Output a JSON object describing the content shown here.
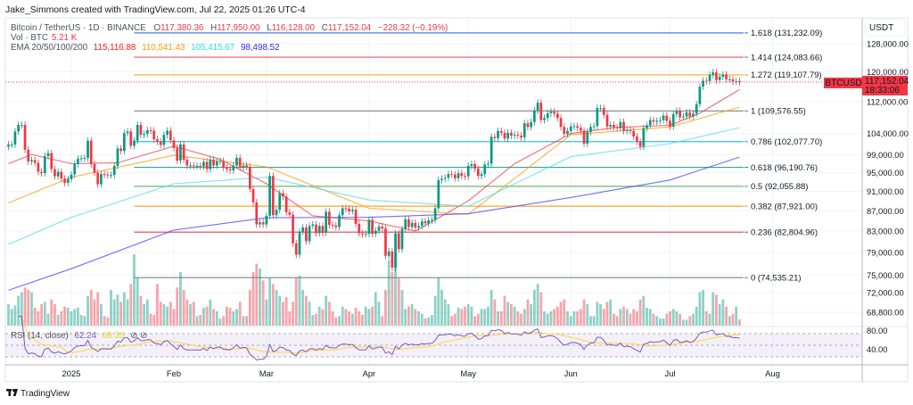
{
  "header": {
    "credit": "Jake_Simmons created with TradingView.com, Jul 22, 2025 01:26 UTC-4"
  },
  "legend": {
    "symbol": "Bitcoin / TetherUS · 1D · BINANCE",
    "open_label": "O",
    "open": "117,380.36",
    "high_label": "H",
    "high": "117,950.00",
    "low_label": "L",
    "low": "116,128.00",
    "close_label": "C",
    "close": "117,152.04",
    "change": "−228.32 (−0.19%)",
    "volume_label": "Vol · BTC",
    "volume": "5.21 K",
    "ema_label": "EMA 20/50/100/200",
    "ema20": "115,116.88",
    "ema50": "110,541.43",
    "ema100": "105,415.67",
    "ema200": "98,498.52"
  },
  "price_axis": {
    "currency": "USDT",
    "ticks": [
      "128,000.00",
      "120,000.00",
      "112,000.00",
      "104,000.00",
      "99,000.00",
      "95,000.00",
      "91,000.00",
      "87,000.00",
      "83,000.00",
      "79,000.00",
      "75,000.00",
      "72,000.00",
      "68,800.00"
    ],
    "tick_values": [
      128000,
      120000,
      112000,
      104000,
      99000,
      95000,
      91000,
      87000,
      83000,
      79000,
      75000,
      72000,
      68800
    ],
    "scale": "log",
    "current_symbol": "BTCUSDT",
    "current_price": "117,152.04",
    "countdown": "18:33:06"
  },
  "time_axis": {
    "ticks": [
      {
        "label": "2025",
        "date": "2025-01-01"
      },
      {
        "label": "Feb",
        "date": "2025-02-01"
      },
      {
        "label": "Mar",
        "date": "2025-03-01"
      },
      {
        "label": "Apr",
        "date": "2025-04-01"
      },
      {
        "label": "May",
        "date": "2025-05-01"
      },
      {
        "label": "Jun",
        "date": "2025-06-01"
      },
      {
        "label": "Jul",
        "date": "2025-07-01"
      },
      {
        "label": "Aug",
        "date": "2025-08-01"
      }
    ]
  },
  "rsi": {
    "label": "RSI (14, close)",
    "value": "62.24",
    "ma_value": "68.35",
    "ticks": [
      "80.00",
      "40.00"
    ],
    "levels": [
      70,
      50,
      30
    ]
  },
  "footer": {
    "brand": "TradingView"
  },
  "colors": {
    "up": "#089981",
    "down": "#f23645",
    "ema20": "#f23645",
    "ema50": "#ff9800",
    "ema100": "#4dd9ec",
    "ema200": "#3d3dff",
    "rsi": "#7e57c2",
    "rsi_ma": "#fdd835"
  },
  "chart_data": {
    "type": "candlestick",
    "symbol": "BTCUSDT",
    "interval": "1D",
    "first_date": "2024-12-13",
    "closes": [
      101400,
      101400,
      104500,
      106100,
      106100,
      100200,
      97500,
      97800,
      97200,
      95200,
      94900,
      98700,
      99400,
      95800,
      94200,
      95200,
      93700,
      92800,
      93600,
      94600,
      96900,
      98100,
      98200,
      98300,
      102300,
      96900,
      95000,
      92500,
      94700,
      94600,
      94500,
      94500,
      96500,
      100500,
      99900,
      104100,
      104500,
      101100,
      102300,
      106100,
      103700,
      103900,
      104800,
      104700,
      102600,
      102100,
      101300,
      103700,
      104700,
      102400,
      100600,
      97700,
      101400,
      97900,
      96600,
      96600,
      96500,
      96500,
      96400,
      97400,
      95800,
      97900,
      96600,
      97500,
      97600,
      96100,
      95800,
      95500,
      96600,
      98300,
      96100,
      96600,
      96300,
      91500,
      88700,
      84300,
      84700,
      84300,
      86000,
      94300,
      86100,
      87200,
      90600,
      89900,
      86700,
      86200,
      80700,
      78600,
      82900,
      83700,
      81100,
      84000,
      84300,
      82600,
      84000,
      82700,
      86800,
      84200,
      84100,
      83800,
      86100,
      87500,
      87400,
      86900,
      87200,
      84400,
      82600,
      82400,
      82500,
      85200,
      82500,
      83100,
      83900,
      83500,
      78400,
      79200,
      76300,
      82600,
      79600,
      83400,
      85300,
      83800,
      84600,
      83700,
      84000,
      84900,
      84500,
      85100,
      85200,
      87500,
      93400,
      93700,
      93900,
      94700,
      94600,
      93800,
      94900,
      94300,
      94200,
      96500,
      96900,
      95900,
      94300,
      94700,
      96800,
      97000,
      103200,
      102900,
      104600,
      104200,
      102800,
      104200,
      103500,
      103700,
      103500,
      103100,
      106500,
      105600,
      106800,
      109700,
      111700,
      107300,
      107800,
      109000,
      109400,
      108900,
      107800,
      105600,
      103900,
      104600,
      105700,
      105800,
      105400,
      104700,
      101600,
      104400,
      105600,
      105800,
      110300,
      110300,
      108600,
      105700,
      106100,
      105500,
      105300,
      106800,
      104600,
      104900,
      104600,
      103300,
      102100,
      100900,
      105300,
      106000,
      107300,
      106900,
      107100,
      107300,
      108400,
      107100,
      105700,
      108800,
      109600,
      108000,
      108200,
      109200,
      108200,
      108900,
      111300,
      115900,
      117500,
      117400,
      119100,
      119800,
      117700,
      118600,
      119200,
      117900,
      117900,
      117300,
      117400,
      117152.04
    ],
    "volumes_k": [
      18,
      14,
      17,
      25,
      28,
      32,
      30,
      28,
      15,
      12,
      18,
      20,
      10,
      22,
      18,
      9,
      12,
      16,
      15,
      12,
      14,
      15,
      9,
      8,
      25,
      30,
      22,
      28,
      18,
      8,
      7,
      30,
      22,
      26,
      20,
      28,
      22,
      35,
      60,
      40,
      25,
      18,
      22,
      10,
      9,
      35,
      20,
      18,
      16,
      20,
      14,
      32,
      45,
      30,
      22,
      18,
      20,
      8,
      9,
      15,
      16,
      22,
      14,
      12,
      6,
      8,
      16,
      15,
      12,
      14,
      20,
      8,
      8,
      30,
      45,
      52,
      48,
      38,
      22,
      40,
      35,
      30,
      25,
      20,
      24,
      12,
      20,
      40,
      42,
      30,
      25,
      20,
      9,
      10,
      16,
      14,
      25,
      20,
      12,
      7,
      8,
      16,
      14,
      12,
      10,
      15,
      12,
      9,
      16,
      14,
      16,
      28,
      20,
      8,
      30,
      55,
      45,
      60,
      40,
      30,
      14,
      16,
      18,
      14,
      12,
      10,
      6,
      7,
      9,
      25,
      40,
      30,
      22,
      18,
      8,
      10,
      15,
      14,
      16,
      18,
      16,
      8,
      10,
      14,
      14,
      16,
      30,
      22,
      12,
      12,
      25,
      20,
      18,
      16,
      12,
      10,
      14,
      22,
      18,
      30,
      35,
      28,
      12,
      10,
      12,
      14,
      16,
      20,
      22,
      12,
      8,
      12,
      12,
      14,
      22,
      18,
      8,
      8,
      20,
      18,
      14,
      20,
      22,
      10,
      8,
      14,
      16,
      14,
      10,
      14,
      12,
      22,
      25,
      15,
      14,
      10,
      8,
      6,
      6,
      10,
      12,
      14,
      12,
      10,
      5,
      5,
      8,
      10,
      16,
      28,
      30,
      12,
      10,
      28,
      26,
      18,
      22,
      16,
      8,
      10,
      16,
      5.21
    ],
    "ema_lines": {
      "ema20": [
        [
          "2024-12-13",
          97000
        ],
        [
          "2024-12-20",
          99100
        ],
        [
          "2025-01-01",
          97000
        ],
        [
          "2025-01-15",
          97200
        ],
        [
          "2025-02-01",
          101000
        ],
        [
          "2025-02-15",
          98000
        ],
        [
          "2025-03-01",
          92600
        ],
        [
          "2025-03-15",
          86000
        ],
        [
          "2025-04-01",
          85000
        ],
        [
          "2025-04-15",
          83000
        ],
        [
          "2025-05-01",
          89000
        ],
        [
          "2025-05-15",
          97000
        ],
        [
          "2025-06-01",
          104000
        ],
        [
          "2025-06-15",
          105500
        ],
        [
          "2025-07-01",
          106000
        ],
        [
          "2025-07-10",
          109000
        ],
        [
          "2025-07-22",
          115116.88
        ]
      ],
      "ema50": [
        [
          "2024-12-13",
          88600
        ],
        [
          "2025-01-01",
          94000
        ],
        [
          "2025-02-01",
          98900
        ],
        [
          "2025-03-01",
          96300
        ],
        [
          "2025-04-01",
          87500
        ],
        [
          "2025-05-01",
          86300
        ],
        [
          "2025-06-01",
          103700
        ],
        [
          "2025-07-01",
          105600
        ],
        [
          "2025-07-22",
          110541.43
        ]
      ],
      "ema100": [
        [
          "2024-12-13",
          80500
        ],
        [
          "2025-01-01",
          85700
        ],
        [
          "2025-02-01",
          92600
        ],
        [
          "2025-03-01",
          94000
        ],
        [
          "2025-04-01",
          89200
        ],
        [
          "2025-05-01",
          87900
        ],
        [
          "2025-06-01",
          98600
        ],
        [
          "2025-07-01",
          101600
        ],
        [
          "2025-07-22",
          105415.67
        ]
      ],
      "ema200": [
        [
          "2024-12-13",
          72400
        ],
        [
          "2025-01-01",
          76100
        ],
        [
          "2025-02-01",
          83200
        ],
        [
          "2025-03-01",
          85600
        ],
        [
          "2025-04-01",
          85700
        ],
        [
          "2025-05-01",
          86400
        ],
        [
          "2025-06-01",
          89700
        ],
        [
          "2025-07-01",
          93400
        ],
        [
          "2025-07-22",
          98498.52
        ]
      ]
    },
    "fibonacci": {
      "start_date": "2025-01-20",
      "levels": [
        {
          "level": "1.618",
          "price": 131232.09,
          "label": "1.618 (131,232.09)",
          "color": "#2962ff"
        },
        {
          "level": "1.414",
          "price": 124083.66,
          "label": "1.414 (124,083.66)",
          "color": "#f23645"
        },
        {
          "level": "1.272",
          "price": 119107.79,
          "label": "1.272 (119,107.79)",
          "color": "#ff9800"
        },
        {
          "level": "1",
          "price": 109576.55,
          "label": "1 (109,576.55)",
          "color": "#787b86"
        },
        {
          "level": "0.786",
          "price": 102077.7,
          "label": "0.786 (102,077.70)",
          "color": "#00bcd4"
        },
        {
          "level": "0.618",
          "price": 96190.76,
          "label": "0.618 (96,190.76)",
          "color": "#089981"
        },
        {
          "level": "0.5",
          "price": 92055.88,
          "label": "0.5 (92,055.88)",
          "color": "#4caf50"
        },
        {
          "level": "0.382",
          "price": 87921.0,
          "label": "0.382 (87,921.00)",
          "color": "#ff9800"
        },
        {
          "level": "0.236",
          "price": 82804.96,
          "label": "0.236 (82,804.96)",
          "color": "#f23645"
        },
        {
          "level": "0",
          "price": 74535.21,
          "label": "0 (74,535.21)",
          "color": "#787b86"
        }
      ]
    }
  }
}
